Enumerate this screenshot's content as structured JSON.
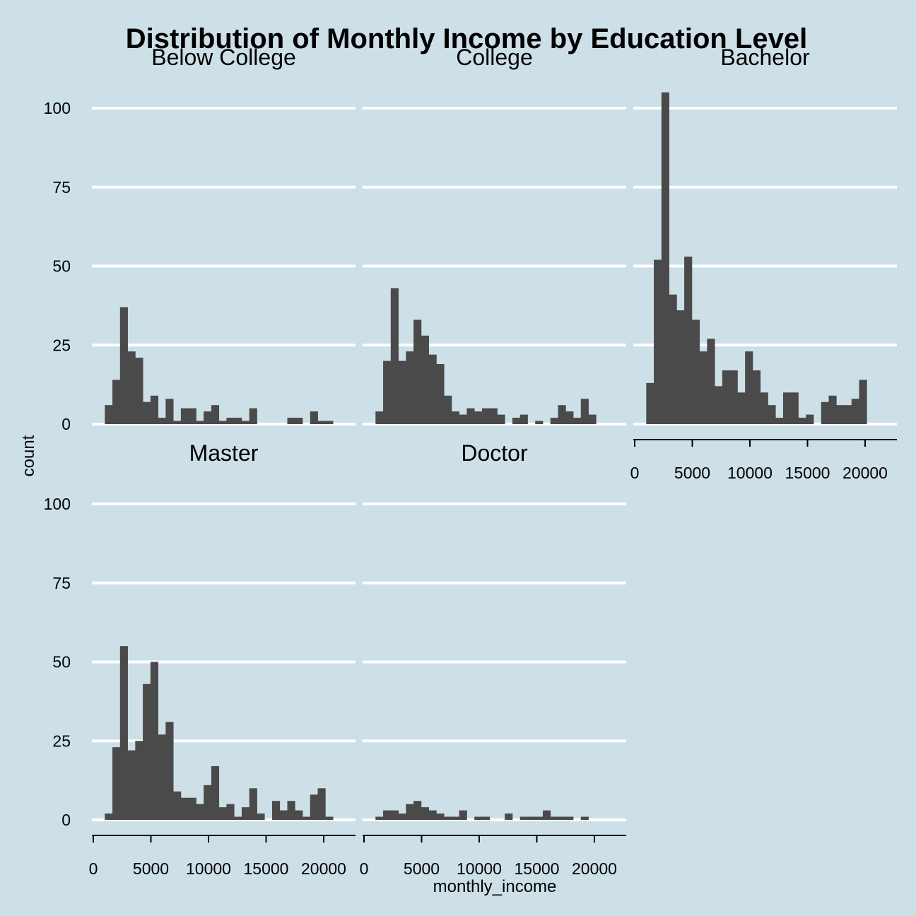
{
  "chart_data": {
    "type": "bar",
    "title": "Distribution of Monthly Income by Education Level",
    "xlabel": "monthly_income",
    "ylabel": "count",
    "xlim": [
      0,
      21000
    ],
    "ylim": [
      0,
      105
    ],
    "x_ticks": [
      0,
      5000,
      10000,
      15000,
      20000
    ],
    "x_tick_labels": [
      "0",
      "5000",
      "10000",
      "15000",
      "20000"
    ],
    "y_ticks": [
      0,
      25,
      50,
      75,
      100
    ],
    "y_tick_labels": [
      "0",
      "25",
      "50",
      "75",
      "100"
    ],
    "grid": "horizontal major",
    "bar_color": "#4a4a4a",
    "background_color": "#cddfe7",
    "grid_color": "#ffffff",
    "bins": [
      1000,
      1660,
      2320,
      2980,
      3640,
      4300,
      4960,
      5620,
      6280,
      6940,
      7600,
      8260,
      8920,
      9580,
      10240,
      10900,
      11560,
      12220,
      12880,
      13540,
      14200,
      14860,
      15520,
      16180,
      16840,
      17500,
      18160,
      18820,
      19480,
      20140
    ],
    "facets": [
      {
        "name": "Below College",
        "counts": [
          6,
          14,
          37,
          23,
          21,
          7,
          9,
          2,
          8,
          1,
          5,
          5,
          1,
          4,
          6,
          1,
          2,
          2,
          1,
          5,
          0,
          0,
          0,
          0,
          2,
          2,
          0,
          4,
          1,
          1
        ]
      },
      {
        "name": "College",
        "counts": [
          4,
          20,
          43,
          20,
          23,
          33,
          28,
          22,
          19,
          9,
          4,
          3,
          5,
          4,
          5,
          5,
          3,
          0,
          2,
          3,
          0,
          1,
          0,
          2,
          6,
          4,
          2,
          8,
          3,
          0
        ]
      },
      {
        "name": "Bachelor",
        "counts": [
          13,
          52,
          105,
          41,
          36,
          53,
          33,
          23,
          27,
          12,
          17,
          17,
          10,
          23,
          17,
          10,
          6,
          2,
          10,
          10,
          2,
          3,
          0,
          7,
          9,
          6,
          6,
          8,
          14,
          0
        ]
      },
      {
        "name": "Master",
        "counts": [
          2,
          23,
          55,
          22,
          25,
          43,
          50,
          27,
          31,
          9,
          7,
          7,
          5,
          11,
          17,
          4,
          5,
          1,
          4,
          10,
          2,
          0,
          6,
          3,
          6,
          3,
          1,
          8,
          10,
          1
        ]
      },
      {
        "name": "Doctor",
        "counts": [
          1,
          3,
          3,
          2,
          5,
          6,
          4,
          3,
          2,
          1,
          1,
          3,
          0,
          1,
          1,
          0,
          0,
          2,
          0,
          1,
          1,
          1,
          3,
          1,
          1,
          1,
          0,
          1,
          0,
          0
        ]
      }
    ]
  }
}
